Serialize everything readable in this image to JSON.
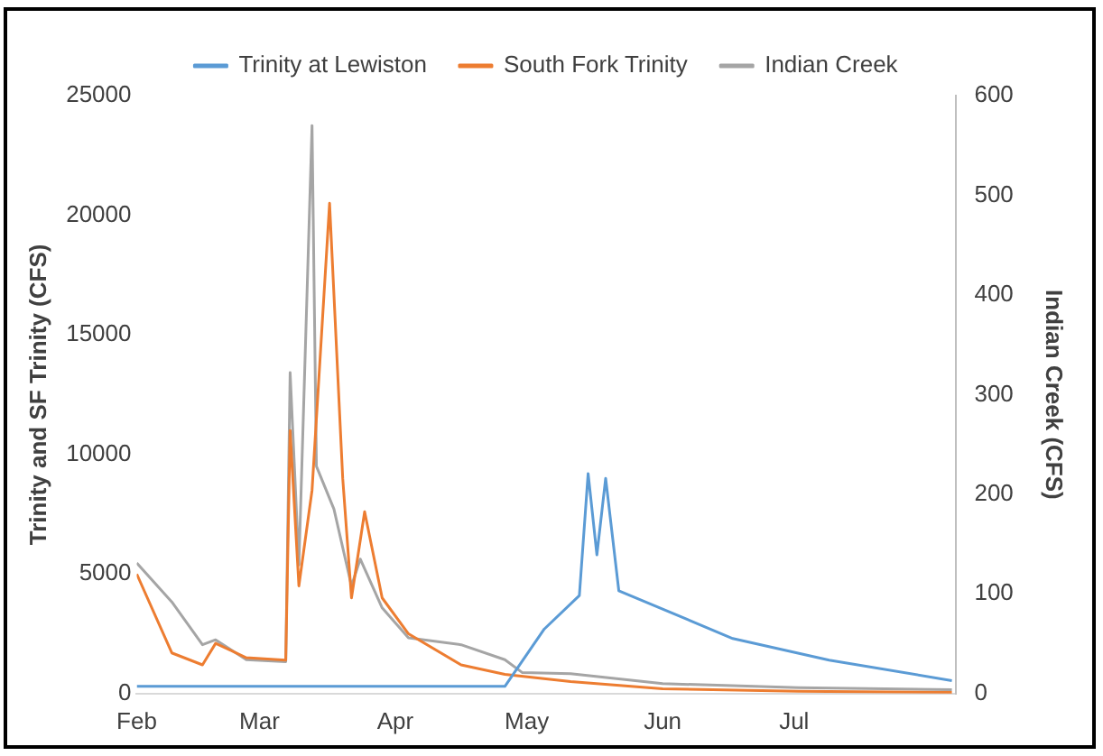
{
  "chart_data": {
    "type": "line",
    "ylabel": "Trinity and SF Trinity (CFS)",
    "y2label": "Indian Creek (CFS)",
    "xlim": [
      "--02-01",
      "--08-07"
    ],
    "xticks": [
      {
        "value": "--02-01",
        "label": "Feb"
      },
      {
        "value": "--03-01",
        "label": "Mar"
      },
      {
        "value": "--04-01",
        "label": "Apr"
      },
      {
        "value": "--05-01",
        "label": "May"
      },
      {
        "value": "--06-01",
        "label": "Jun"
      },
      {
        "value": "--07-01",
        "label": "Jul"
      }
    ],
    "ylim": [
      0,
      25000
    ],
    "yticks": [
      0,
      5000,
      10000,
      15000,
      20000,
      25000
    ],
    "y2lim": [
      0,
      600
    ],
    "y2ticks": [
      0,
      100,
      200,
      300,
      400,
      500,
      600
    ],
    "grid": false,
    "legend": "top",
    "marker": "none",
    "line_style": "solid",
    "series": [
      {
        "name": "Trinity at Lewiston",
        "color": "#5b9bd5",
        "x": [
          "--02-01",
          "--03-01",
          "--04-01",
          "--04-26",
          "--05-05",
          "--05-13",
          "--05-15",
          "--05-17",
          "--05-19",
          "--05-22",
          "--06-17",
          "--07-09",
          "--08-06"
        ],
        "values": [
          300,
          300,
          300,
          300,
          2700,
          4100,
          9200,
          5800,
          9000,
          4300,
          2300,
          1400,
          540
        ]
      },
      {
        "name": "South Fork Trinity",
        "color": "#ed7d31",
        "x": [
          "--02-01",
          "--02-09",
          "--02-16",
          "--02-19",
          "--02-26",
          "--03-07",
          "--03-08",
          "--03-10",
          "--03-13",
          "--03-17",
          "--03-20",
          "--03-22",
          "--03-25",
          "--03-29",
          "--04-04",
          "--04-16",
          "--04-26",
          "--05-11",
          "--06-01",
          "--07-02",
          "--08-06"
        ],
        "values": [
          5000,
          1700,
          1200,
          2100,
          1500,
          1400,
          11000,
          4500,
          8500,
          20500,
          9000,
          4000,
          7600,
          4000,
          2500,
          1200,
          800,
          500,
          200,
          100,
          50
        ]
      },
      {
        "name": "Indian Creek",
        "color": "#a5a5a5",
        "axis": "y2",
        "x": [
          "--02-01",
          "--02-09",
          "--02-16",
          "--02-19",
          "--02-26",
          "--03-07",
          "--03-08",
          "--03-10",
          "--03-13",
          "--03-14",
          "--03-18",
          "--03-22",
          "--03-24",
          "--03-29",
          "--04-04",
          "--04-16",
          "--04-26",
          "--04-30",
          "--05-11",
          "--06-01",
          "--07-02",
          "--08-06"
        ],
        "values": [
          131,
          92,
          49,
          54,
          34,
          32,
          322,
          129,
          570,
          228,
          185,
          108,
          135,
          86,
          56,
          49,
          34,
          21,
          20,
          10,
          6,
          4
        ]
      }
    ]
  }
}
